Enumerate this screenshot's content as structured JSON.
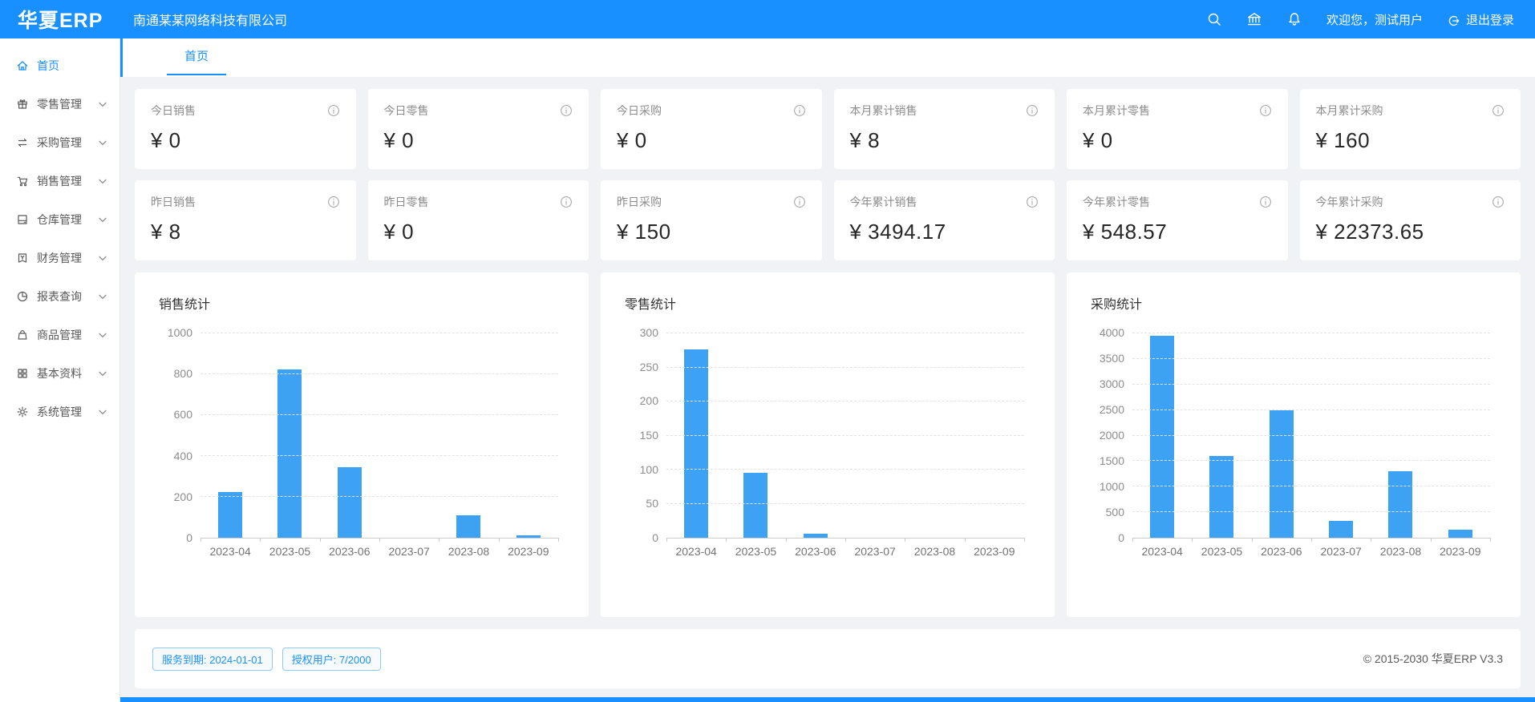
{
  "header": {
    "logo": "华夏ERP",
    "company": "南通某某网络科技有限公司",
    "welcome": "欢迎您，测试用户",
    "logout_label": "退出登录"
  },
  "sidebar": {
    "items": [
      {
        "label": "首页",
        "icon": "home-icon",
        "active": true
      },
      {
        "label": "零售管理",
        "icon": "gift-icon"
      },
      {
        "label": "采购管理",
        "icon": "swap-icon"
      },
      {
        "label": "销售管理",
        "icon": "cart-icon"
      },
      {
        "label": "仓库管理",
        "icon": "warehouse-icon"
      },
      {
        "label": "财务管理",
        "icon": "finance-icon"
      },
      {
        "label": "报表查询",
        "icon": "pie-chart-icon"
      },
      {
        "label": "商品管理",
        "icon": "bag-icon"
      },
      {
        "label": "基本资料",
        "icon": "grid-icon"
      },
      {
        "label": "系统管理",
        "icon": "gear-icon"
      }
    ]
  },
  "tabs": {
    "active": "首页"
  },
  "stats": {
    "cards": [
      {
        "label": "今日销售",
        "value": "¥ 0"
      },
      {
        "label": "今日零售",
        "value": "¥ 0"
      },
      {
        "label": "今日采购",
        "value": "¥ 0"
      },
      {
        "label": "本月累计销售",
        "value": "¥ 8"
      },
      {
        "label": "本月累计零售",
        "value": "¥ 0"
      },
      {
        "label": "本月累计采购",
        "value": "¥ 160"
      },
      {
        "label": "昨日销售",
        "value": "¥ 8"
      },
      {
        "label": "昨日零售",
        "value": "¥ 0"
      },
      {
        "label": "昨日采购",
        "value": "¥ 150"
      },
      {
        "label": "今年累计销售",
        "value": "¥ 3494.17"
      },
      {
        "label": "今年累计零售",
        "value": "¥ 548.57"
      },
      {
        "label": "今年累计采购",
        "value": "¥ 22373.65"
      }
    ]
  },
  "chart_data": [
    {
      "type": "bar",
      "title": "销售统计",
      "categories": [
        "2023-04",
        "2023-05",
        "2023-06",
        "2023-07",
        "2023-08",
        "2023-09"
      ],
      "values": [
        225,
        825,
        345,
        0,
        110,
        10
      ],
      "ylim": [
        0,
        1000
      ],
      "ytick_step": 200,
      "grid": "dashed",
      "bar_color": "#3da2f4"
    },
    {
      "type": "bar",
      "title": "零售统计",
      "categories": [
        "2023-04",
        "2023-05",
        "2023-06",
        "2023-07",
        "2023-08",
        "2023-09"
      ],
      "values": [
        277,
        95,
        6,
        0,
        0,
        0
      ],
      "ylim": [
        0,
        300
      ],
      "ytick_step": 50,
      "grid": "dashed",
      "bar_color": "#3da2f4"
    },
    {
      "type": "bar",
      "title": "采购统计",
      "categories": [
        "2023-04",
        "2023-05",
        "2023-06",
        "2023-07",
        "2023-08",
        "2023-09"
      ],
      "values": [
        3950,
        1600,
        2500,
        330,
        1300,
        150
      ],
      "ylim": [
        0,
        4000
      ],
      "ytick_step": 500,
      "grid": "dashed",
      "bar_color": "#3da2f4"
    }
  ],
  "footer": {
    "badges": [
      "服务到期: 2024-01-01",
      "授权用户: 7/2000"
    ],
    "copyright": "© 2015-2030 华夏ERP V3.3"
  },
  "colors": {
    "accent": "#1890ff",
    "bar": "#3da2f4",
    "page_bg": "#f0f2f5"
  }
}
